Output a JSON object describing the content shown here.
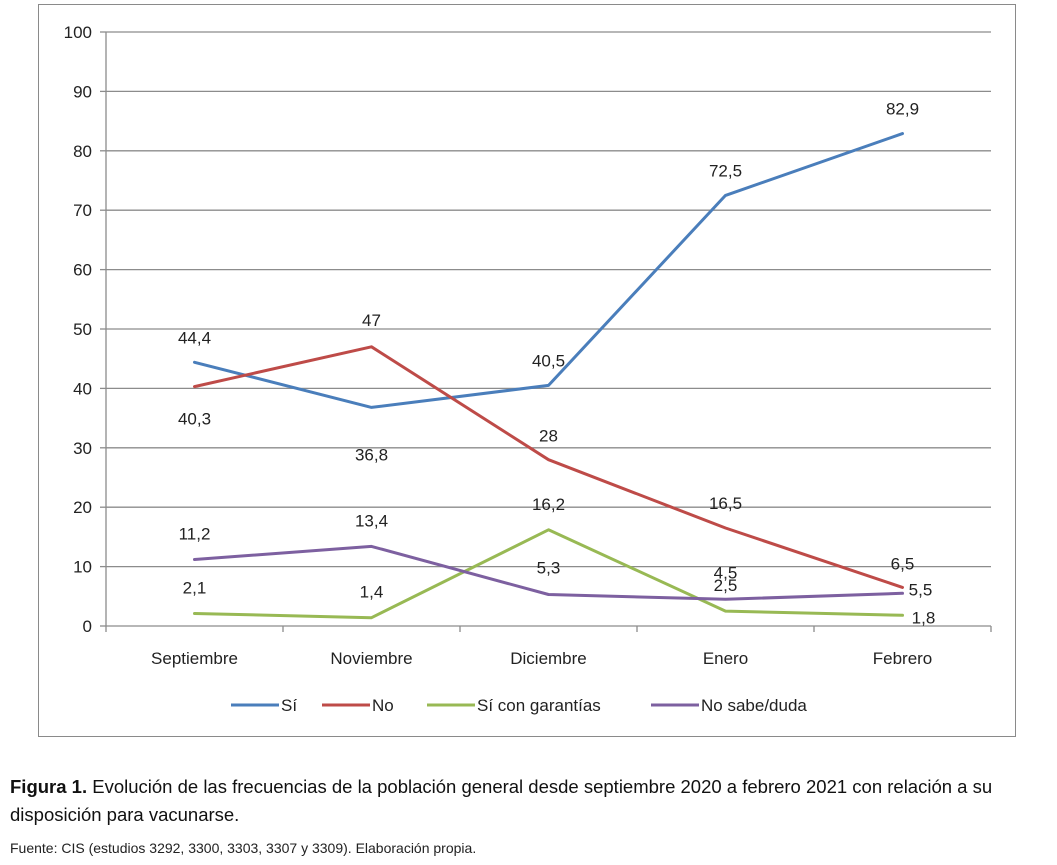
{
  "chart_data": {
    "type": "line",
    "categories": [
      "Septiembre",
      "Noviembre",
      "Diciembre",
      "Enero",
      "Febrero"
    ],
    "ylim": [
      0,
      100
    ],
    "yticks": [
      0,
      10,
      20,
      30,
      40,
      50,
      60,
      70,
      80,
      90,
      100
    ],
    "grid": true,
    "legend_position": "bottom",
    "series": [
      {
        "name": "Sí",
        "color": "#4A7EBB",
        "values": [
          44.4,
          36.8,
          40.5,
          72.5,
          82.9
        ],
        "labels": [
          "44,4",
          "36,8",
          "40,5",
          "72,5",
          "82,9"
        ]
      },
      {
        "name": "No",
        "color": "#BE4B48",
        "values": [
          40.3,
          47,
          28,
          16.5,
          6.5
        ],
        "labels": [
          "40,3",
          "47",
          "28",
          "16,5",
          "6,5"
        ]
      },
      {
        "name": "Sí con garantías",
        "color": "#98B954",
        "values": [
          2.1,
          1.4,
          16.2,
          2.5,
          1.8
        ],
        "labels": [
          "2,1",
          "1,4",
          "16,2",
          "2,5",
          "1,8"
        ]
      },
      {
        "name": "No sabe/duda",
        "color": "#7D60A0",
        "values": [
          11.2,
          13.4,
          5.3,
          4.5,
          5.5
        ],
        "labels": [
          "11,2",
          "13,4",
          "5,3",
          "4,5",
          "5,5"
        ]
      }
    ]
  },
  "caption": {
    "figure_label": "Figura 1.",
    "text": " Evolución de las frecuencias de la población general desde septiembre 2020 a febrero 2021 con relación a su disposición para vacunarse."
  },
  "source": "Fuente: CIS (estudios 3292, 3300, 3303, 3307 y 3309). Elaboración propia."
}
